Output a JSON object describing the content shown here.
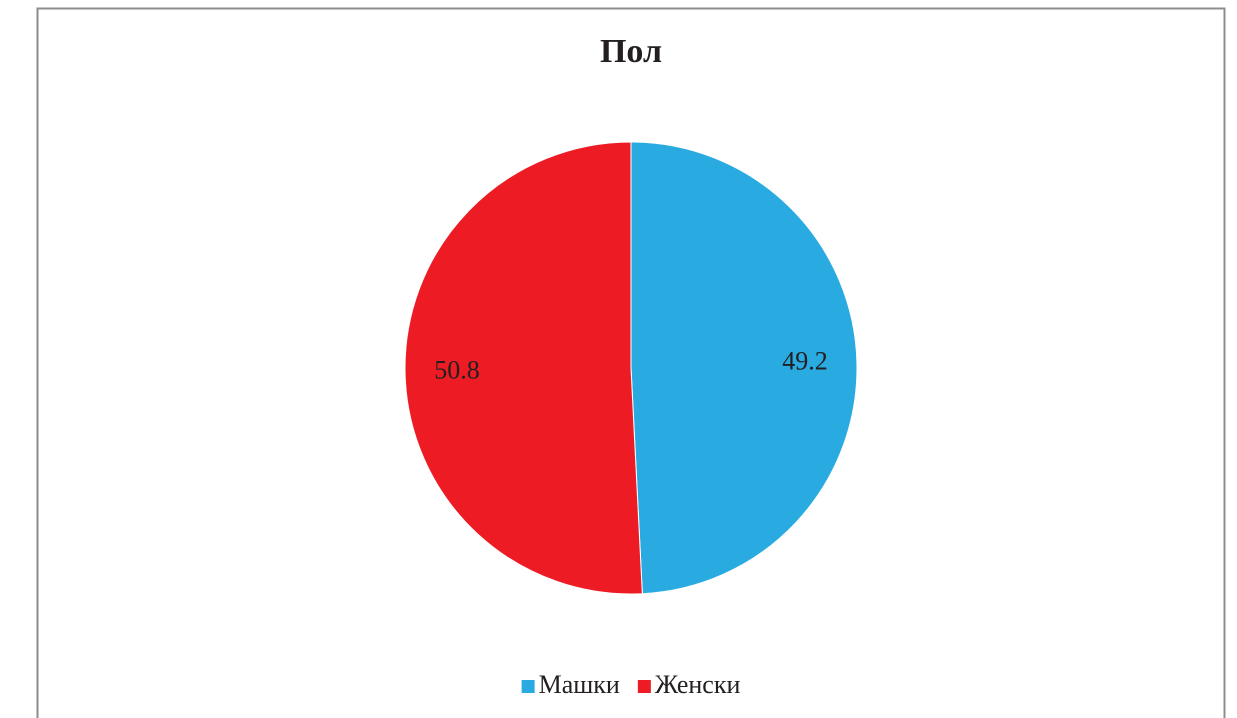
{
  "chart_data": {
    "type": "pie",
    "title": "Пол",
    "categories": [
      "Машки",
      "Женски"
    ],
    "values": [
      49.2,
      50.8
    ],
    "colors": [
      "#29abe2",
      "#ed1c24"
    ],
    "legend": "bottom"
  }
}
